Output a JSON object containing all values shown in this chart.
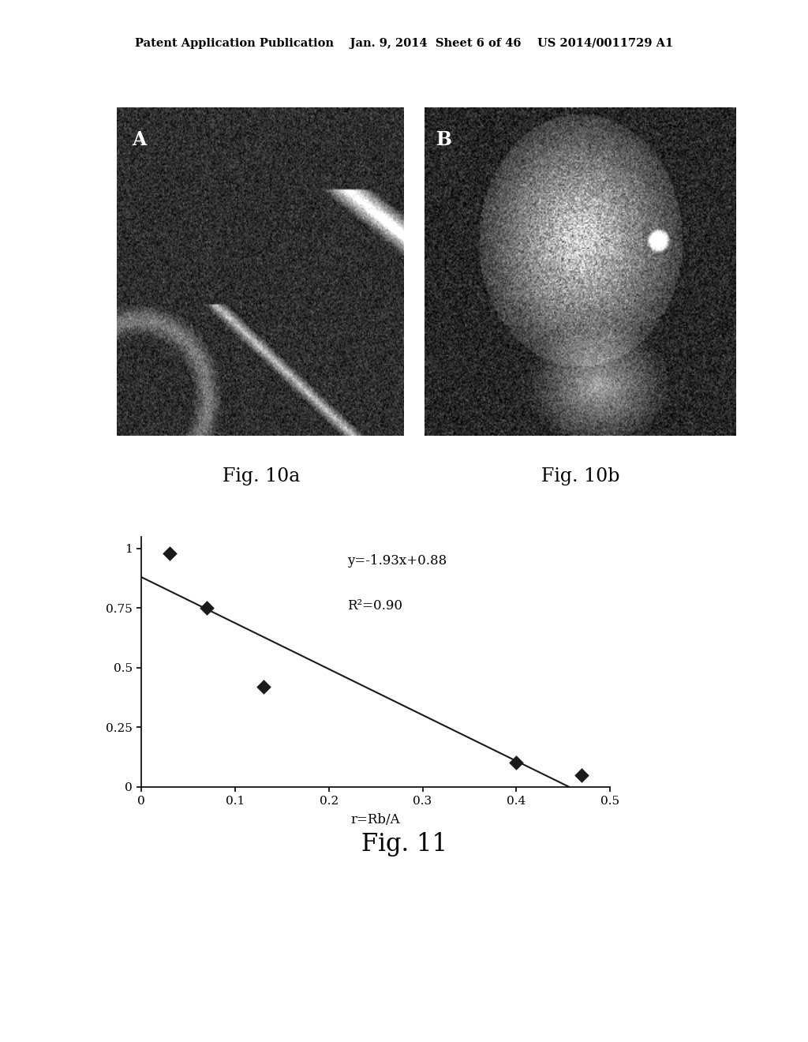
{
  "header_text": "Patent Application Publication    Jan. 9, 2014  Sheet 6 of 46    US 2014/0011729 A1",
  "fig10a_label": "Fig. 10a",
  "fig10b_label": "Fig. 10b",
  "fig11_label": "Fig. 11",
  "scatter_x": [
    0.03,
    0.07,
    0.13,
    0.4,
    0.47
  ],
  "scatter_y": [
    0.98,
    0.75,
    0.42,
    0.1,
    0.05
  ],
  "line_x": [
    0.0,
    0.456
  ],
  "line_slope": -1.93,
  "line_intercept": 0.88,
  "equation_text": "y=-1.93x+0.88",
  "r2_text": "R²=0.90",
  "xlabel": "r=Rb/A",
  "xlim": [
    0,
    0.5
  ],
  "ylim": [
    0,
    1.05
  ],
  "yticks": [
    0,
    0.25,
    0.5,
    0.75,
    1
  ],
  "xticks": [
    0,
    0.1,
    0.2,
    0.3,
    0.4,
    0.5
  ],
  "marker_color": "#1a1a1a",
  "line_color": "#1a1a1a",
  "background_color": "#ffffff",
  "label_A": "A",
  "label_B": "B"
}
